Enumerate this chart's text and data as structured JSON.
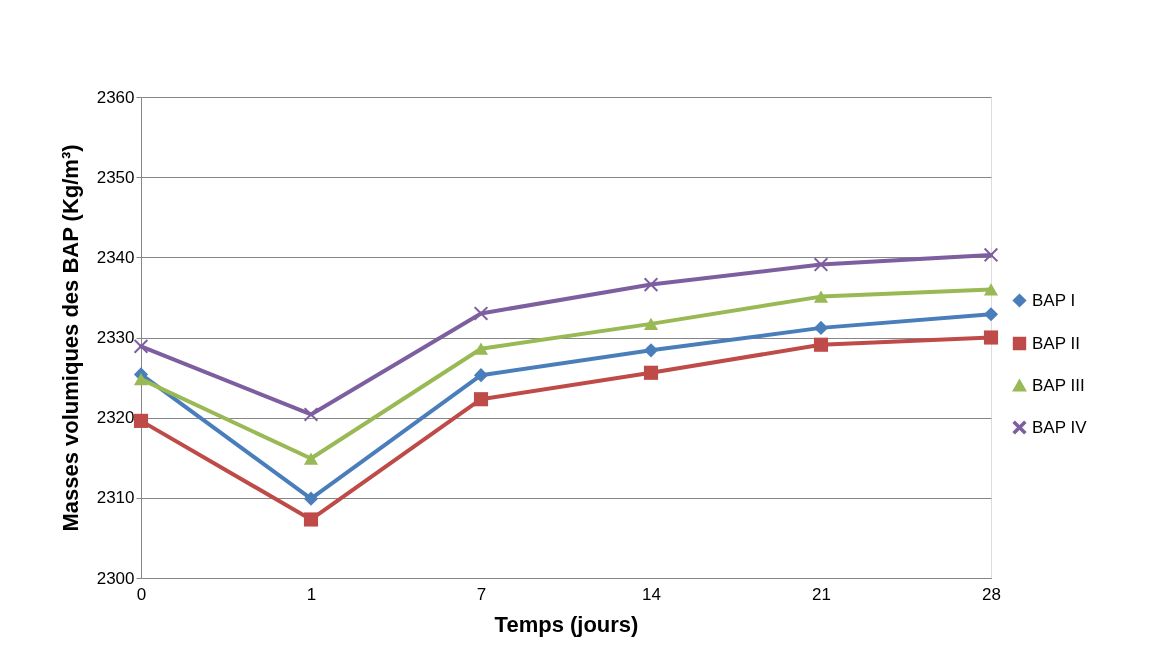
{
  "chart_data": {
    "type": "line",
    "xlabel": "Temps (jours)",
    "ylabel": "Masses volumiques des BAP (Kg/m³)",
    "categories": [
      "0",
      "1",
      "7",
      "14",
      "21",
      "28"
    ],
    "series": [
      {
        "name": "BAP I",
        "color": "#4a7ebb",
        "marker": "diamond",
        "values": [
          2325.4,
          2309.9,
          2325.3,
          2328.4,
          2331.2,
          2332.9
        ]
      },
      {
        "name": "BAP II",
        "color": "#be4b48",
        "marker": "square",
        "values": [
          2319.6,
          2307.3,
          2322.3,
          2325.6,
          2329.1,
          2330.0
        ]
      },
      {
        "name": "BAP III",
        "color": "#98b954",
        "marker": "triangle",
        "values": [
          2324.8,
          2314.9,
          2328.6,
          2331.7,
          2335.1,
          2336.0
        ]
      },
      {
        "name": "BAP IV",
        "color": "#7d5fa0",
        "marker": "cross",
        "values": [
          2328.9,
          2320.4,
          2333.0,
          2336.6,
          2339.1,
          2340.3
        ]
      }
    ],
    "ylim": [
      2300,
      2360
    ],
    "yticks": [
      2300,
      2310,
      2320,
      2330,
      2340,
      2350,
      2360
    ],
    "grid": "y",
    "legend": "right",
    "line_style": "solid"
  }
}
